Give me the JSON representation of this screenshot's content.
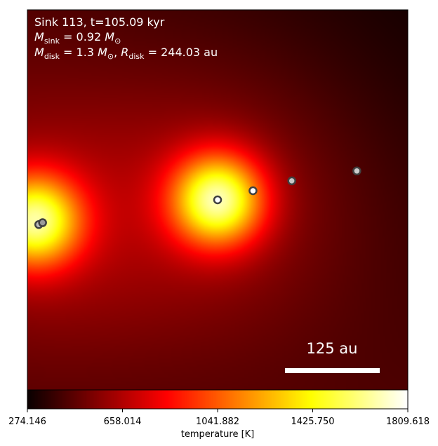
{
  "chart_data": {
    "type": "heatmap",
    "title": "",
    "annotations": {
      "line1": "Sink 113, t=105.09 kyr",
      "line2_math": "M_sink = 0.92 M_⊙",
      "line3_math": "M_disk = 1.3 M_⊙, R_disk = 244.03 au",
      "scalebar_label": "125 au"
    },
    "colormap": "hot",
    "colorbar": {
      "label": "temperature [K]",
      "vmin": 274.146,
      "vmax": 1809.618,
      "ticks": [
        274.146,
        658.014,
        1041.882,
        1425.75,
        1809.618
      ],
      "tick_labels": [
        "274.146",
        "658.014",
        "1041.882",
        "1425.750",
        "1809.618"
      ]
    },
    "hot_spots": [
      {
        "x": 0.02,
        "y": 0.555,
        "peak": 1350,
        "sigma": 0.085
      },
      {
        "x": 0.5,
        "y": 0.5,
        "peak": 1400,
        "sigma": 0.085
      }
    ],
    "background_temperature": 420,
    "sinks": [
      {
        "x": 0.03,
        "y": 0.565,
        "face": "#bcbcbc"
      },
      {
        "x": 0.04,
        "y": 0.56,
        "face": "#9a9a9a"
      },
      {
        "x": 0.5,
        "y": 0.5,
        "face": "#ffffff"
      },
      {
        "x": 0.593,
        "y": 0.476,
        "face": "#ffffff"
      },
      {
        "x": 0.695,
        "y": 0.45,
        "face": "#c8c8c8"
      },
      {
        "x": 0.866,
        "y": 0.424,
        "face": "#cccccc"
      }
    ]
  }
}
